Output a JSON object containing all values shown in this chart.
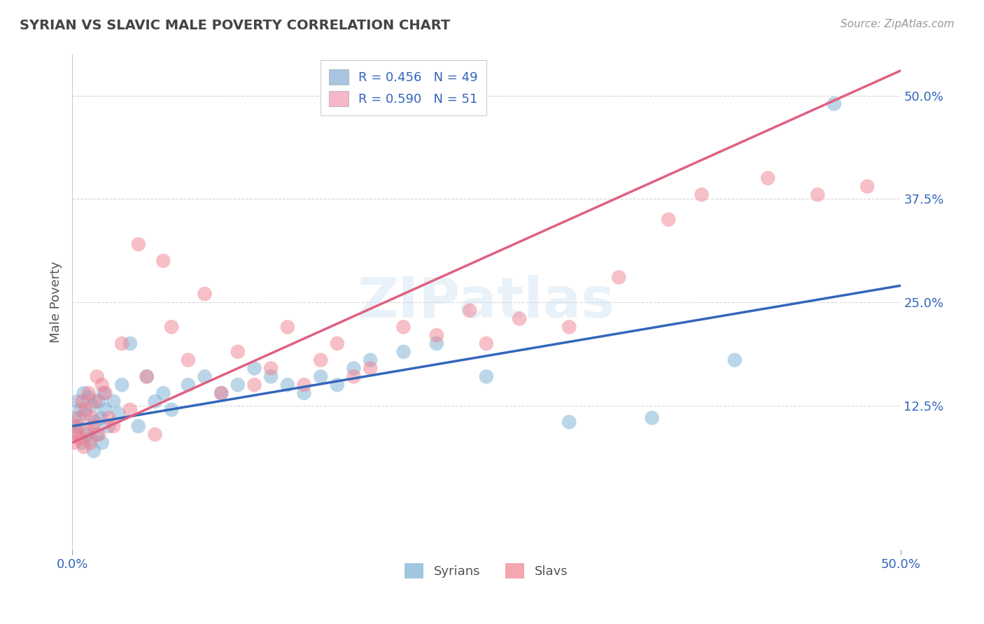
{
  "title": "SYRIAN VS SLAVIC MALE POVERTY CORRELATION CHART",
  "source": "Source: ZipAtlas.com",
  "ylabel": "Male Poverty",
  "ytick_labels": [
    "12.5%",
    "25.0%",
    "37.5%",
    "50.0%"
  ],
  "ytick_values": [
    12.5,
    25.0,
    37.5,
    50.0
  ],
  "xlim": [
    0,
    50
  ],
  "ylim": [
    -5,
    55
  ],
  "legend_entries": [
    {
      "label": "R = 0.456   N = 49",
      "color": "#a8c4e0"
    },
    {
      "label": "R = 0.590   N = 51",
      "color": "#f4b8c8"
    }
  ],
  "legend_bottom_labels": [
    "Syrians",
    "Slavs"
  ],
  "syrians_color": "#7aafd4",
  "slavs_color": "#f08090",
  "syrians_line_color": "#3366bb",
  "slavs_line_color": "#e06080",
  "background_color": "#ffffff",
  "grid_color": "#cccccc",
  "title_color": "#444444",
  "syrians_x": [
    0.1,
    0.2,
    0.3,
    0.4,
    0.5,
    0.6,
    0.7,
    0.8,
    0.9,
    1.0,
    1.1,
    1.2,
    1.3,
    1.4,
    1.5,
    1.6,
    1.7,
    1.8,
    1.9,
    2.0,
    2.2,
    2.5,
    2.8,
    3.0,
    3.5,
    4.0,
    4.5,
    5.0,
    5.5,
    6.0,
    7.0,
    8.0,
    9.0,
    10.0,
    11.0,
    12.0,
    13.0,
    14.0,
    15.0,
    16.0,
    17.0,
    18.0,
    20.0,
    22.0,
    25.0,
    30.0,
    35.0,
    40.0,
    46.0
  ],
  "syrians_y": [
    11.0,
    9.5,
    13.0,
    10.0,
    12.0,
    8.0,
    14.0,
    11.5,
    9.0,
    13.5,
    8.5,
    12.5,
    7.0,
    10.5,
    9.0,
    13.0,
    11.0,
    8.0,
    14.0,
    12.0,
    10.0,
    13.0,
    11.5,
    15.0,
    20.0,
    10.0,
    16.0,
    13.0,
    14.0,
    12.0,
    15.0,
    16.0,
    14.0,
    15.0,
    17.0,
    16.0,
    15.0,
    14.0,
    16.0,
    15.0,
    17.0,
    18.0,
    19.0,
    20.0,
    16.0,
    10.5,
    11.0,
    18.0,
    49.0
  ],
  "slavs_x": [
    0.1,
    0.2,
    0.3,
    0.4,
    0.5,
    0.6,
    0.7,
    0.8,
    0.9,
    1.0,
    1.1,
    1.2,
    1.3,
    1.4,
    1.5,
    1.6,
    1.8,
    2.0,
    2.2,
    2.5,
    3.0,
    3.5,
    4.0,
    4.5,
    5.0,
    5.5,
    6.0,
    7.0,
    8.0,
    9.0,
    10.0,
    11.0,
    12.0,
    13.0,
    14.0,
    15.0,
    16.0,
    17.0,
    18.0,
    20.0,
    22.0,
    24.0,
    25.0,
    27.0,
    30.0,
    33.0,
    36.0,
    38.0,
    42.0,
    45.0,
    48.0
  ],
  "slavs_y": [
    8.0,
    10.0,
    9.0,
    11.0,
    8.5,
    13.0,
    7.5,
    12.0,
    9.5,
    14.0,
    8.0,
    11.0,
    10.0,
    13.0,
    16.0,
    9.0,
    15.0,
    14.0,
    11.0,
    10.0,
    20.0,
    12.0,
    32.0,
    16.0,
    9.0,
    30.0,
    22.0,
    18.0,
    26.0,
    14.0,
    19.0,
    15.0,
    17.0,
    22.0,
    15.0,
    18.0,
    20.0,
    16.0,
    17.0,
    22.0,
    21.0,
    24.0,
    20.0,
    23.0,
    22.0,
    28.0,
    35.0,
    38.0,
    40.0,
    38.0,
    39.0
  ],
  "syrians_line_x0": 0,
  "syrians_line_y0": 10.0,
  "syrians_line_x1": 50,
  "syrians_line_y1": 27.0,
  "slavs_line_x0": 0,
  "slavs_line_y0": 8.0,
  "slavs_line_x1": 50,
  "slavs_line_y1": 53.0
}
